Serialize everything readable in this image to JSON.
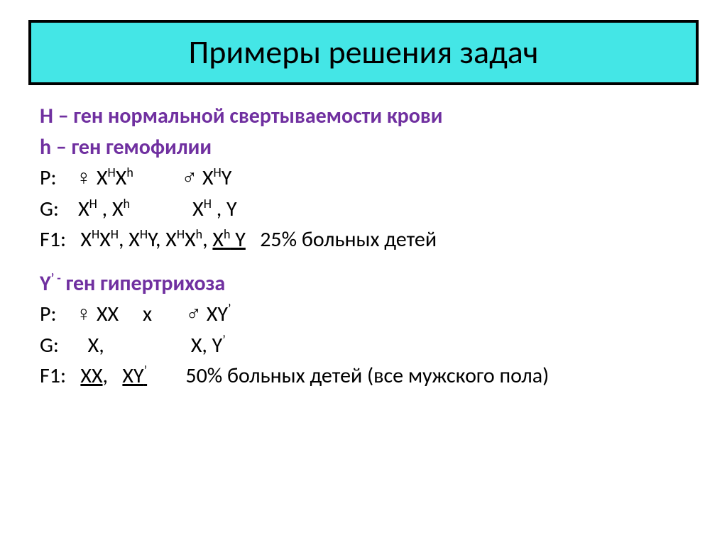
{
  "colors": {
    "title_bg": "#44e6e6",
    "title_border": "#000000",
    "purple": "#7030a0",
    "black": "#000000",
    "page_bg": "#ffffff"
  },
  "typography": {
    "title_fontsize": 46,
    "body_fontsize": 30,
    "font_family": "Calibri, Arial, sans-serif"
  },
  "title": "Примеры решения задач",
  "block1": {
    "legend1": "H – ген нормальной свертываемости крови",
    "legend2": "h – ген гемофилии",
    "P_label": "P:",
    "P_female_symbol": "♀",
    "P_female_geno": "XᴴXʰ",
    "P_male_symbol": "♂",
    "P_male_geno": "XᴴY",
    "G_label": "G:",
    "G_female": "Xᴴ , Xʰ",
    "G_male": "Xᴴ , Y",
    "F1_label": "F1:",
    "F1_geno1": "XᴴXᴴ",
    "F1_geno2": "XᴴY",
    "F1_geno3": "XᴴXʰ",
    "F1_geno4": "Xʰ Y",
    "F1_result": "25% больных детей"
  },
  "block2": {
    "legend_prefix": "Y",
    "legend_sup": "’ -",
    "legend_rest": " ген гипертрихоза",
    "P_label": "P:",
    "P_female_symbol": "♀",
    "P_female_geno": "XX",
    "P_cross": "x",
    "P_male_symbol": "♂",
    "P_male_geno": "XY’",
    "G_label": "G:",
    "G_female": "X,",
    "G_male": "X, Y’",
    "F1_label": "F1:",
    "F1_geno1": "XX",
    "F1_geno2": "XY’",
    "F1_result": "50% больных детей (все мужского пола)"
  }
}
